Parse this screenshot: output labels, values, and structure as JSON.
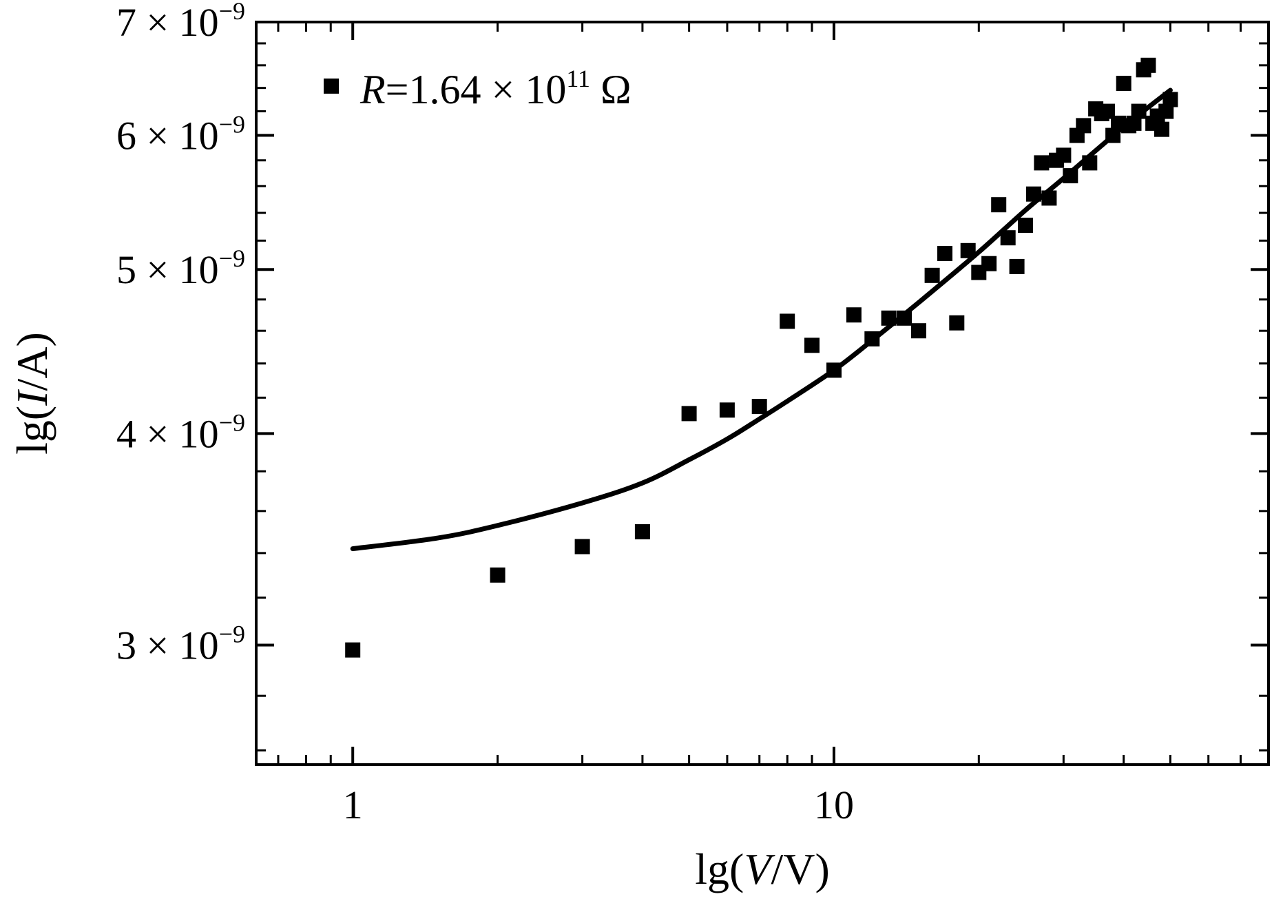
{
  "chart_data": {
    "type": "scatter",
    "xlabel": {
      "prefix": "lg(",
      "var": "V",
      "suffix": "/V)"
    },
    "ylabel": {
      "prefix": "lg(",
      "var": "I",
      "suffix": "/A)"
    },
    "x_scale": "log",
    "y_scale": "log",
    "xlim": [
      0.63,
      80
    ],
    "ylim": [
      2.55e-09,
      7e-09
    ],
    "x_ticks": [
      {
        "value": 1,
        "label": "1"
      },
      {
        "value": 10,
        "label": "10"
      }
    ],
    "y_ticks": [
      {
        "value": 3e-09,
        "mantissa": "3",
        "times": " × 10",
        "exponent": "−9"
      },
      {
        "value": 4e-09,
        "mantissa": "4",
        "times": " × 10",
        "exponent": "−9"
      },
      {
        "value": 5e-09,
        "mantissa": "5",
        "times": " × 10",
        "exponent": "−9"
      },
      {
        "value": 6e-09,
        "mantissa": "6",
        "times": " × 10",
        "exponent": "−9"
      },
      {
        "value": 7e-09,
        "mantissa": "7",
        "times": " × 10",
        "exponent": "−9"
      }
    ],
    "grid": false,
    "legend_position": "top-left",
    "legend": {
      "var": "R",
      "text": "=1.64 × 10",
      "exponent": "11",
      "unit": " Ω"
    },
    "series": [
      {
        "kind": "points",
        "marker": "square",
        "color": "#000000",
        "x": [
          1,
          2,
          3,
          4,
          5,
          6,
          7,
          8,
          9,
          10,
          11,
          12,
          13,
          14,
          15,
          16,
          17,
          18,
          19,
          20,
          21,
          22,
          23,
          24,
          25,
          26,
          27,
          28,
          29,
          30,
          31,
          32,
          33,
          34,
          35,
          36,
          37,
          38,
          39,
          40,
          41,
          42,
          43,
          44,
          45,
          46,
          47,
          48,
          49,
          50
        ],
        "y": [
          2.98e-09,
          3.3e-09,
          3.43e-09,
          3.5e-09,
          4.11e-09,
          4.13e-09,
          4.15e-09,
          4.66e-09,
          4.51e-09,
          4.36e-09,
          4.7e-09,
          4.55e-09,
          4.68e-09,
          4.68e-09,
          4.6e-09,
          4.96e-09,
          5.11e-09,
          4.65e-09,
          5.13e-09,
          4.98e-09,
          5.04e-09,
          5.46e-09,
          5.22e-09,
          5.02e-09,
          5.31e-09,
          5.54e-09,
          5.78e-09,
          5.51e-09,
          5.8e-09,
          5.84e-09,
          5.68e-09,
          6e-09,
          6.08e-09,
          5.78e-09,
          6.22e-09,
          6.18e-09,
          6.2e-09,
          6e-09,
          6.1e-09,
          6.44e-09,
          6.08e-09,
          6.1e-09,
          6.2e-09,
          6.56e-09,
          6.6e-09,
          6.1e-09,
          6.16e-09,
          6.05e-09,
          6.2e-09,
          6.3e-09
        ]
      },
      {
        "kind": "fit",
        "color": "#000000",
        "x": [
          1,
          1.5,
          2,
          3,
          4,
          5,
          6,
          7,
          8,
          10,
          12,
          15,
          20,
          25,
          30,
          40,
          50
        ],
        "y": [
          3.42e-09,
          3.47e-09,
          3.53e-09,
          3.64e-09,
          3.74e-09,
          3.86e-09,
          3.97e-09,
          4.08e-09,
          4.18e-09,
          4.36e-09,
          4.54e-09,
          4.78e-09,
          5.12e-09,
          5.42e-09,
          5.66e-09,
          6.07e-09,
          6.38e-09
        ]
      }
    ]
  }
}
